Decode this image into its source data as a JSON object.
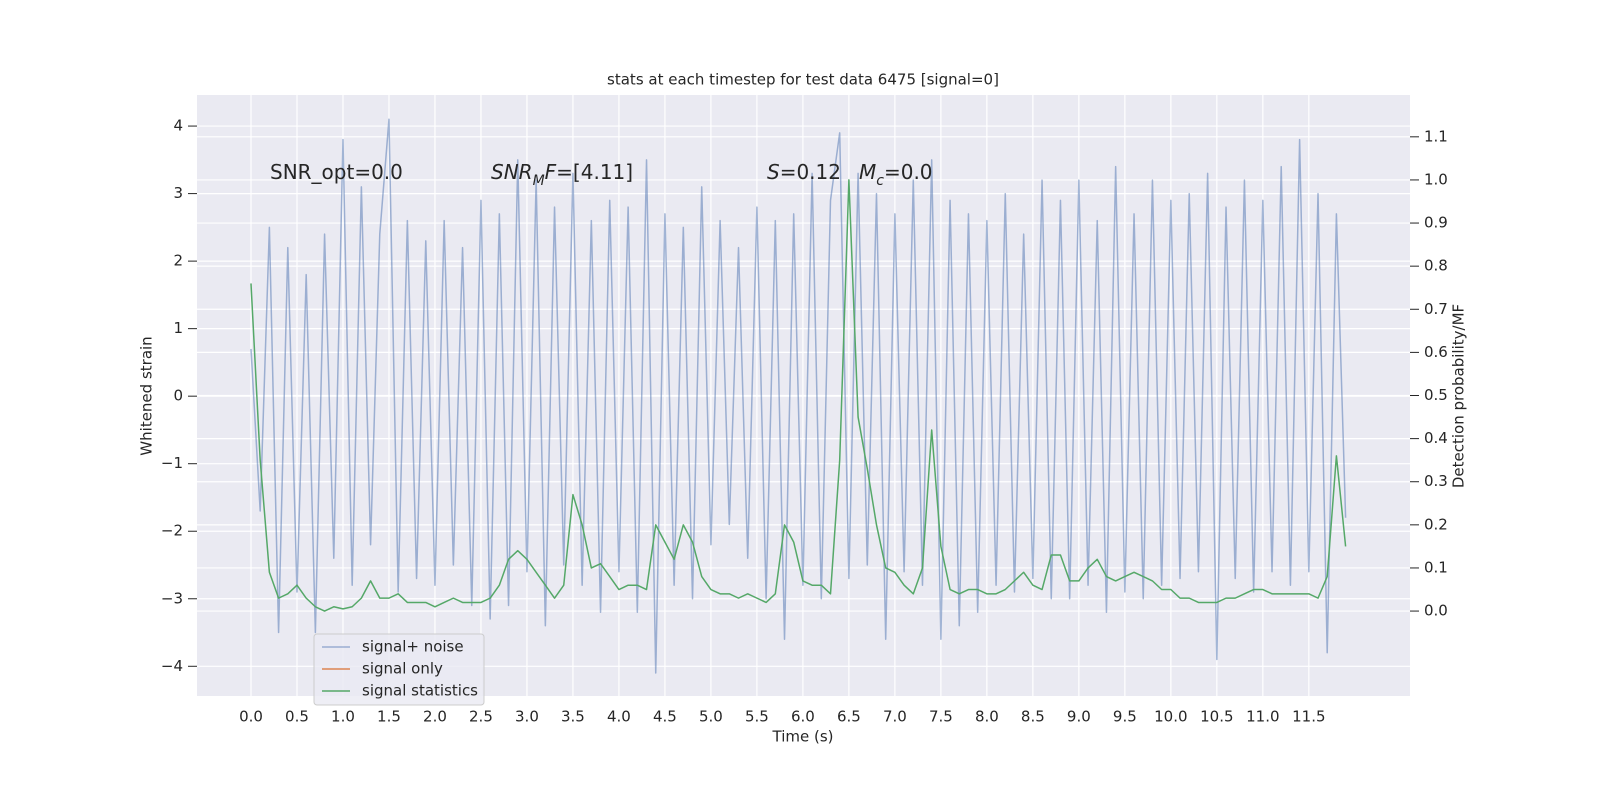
{
  "chart_data": {
    "type": "line",
    "title": "stats at each timestep for test data 6475 [signal=0]",
    "xlabel": "Time (s)",
    "ylabel": "Whitened strain",
    "y2label": "Detection probability/MF",
    "annotations": [
      {
        "segments": [
          {
            "text": "SNR_opt=0.0",
            "italic": false,
            "sub": false
          }
        ]
      },
      {
        "segments": [
          {
            "text": "SNR",
            "italic": true,
            "sub": false
          },
          {
            "text": "M",
            "italic": true,
            "sub": true
          },
          {
            "text": "F",
            "italic": true,
            "sub": false
          },
          {
            "text": "=[4.11]",
            "italic": false,
            "sub": false
          }
        ]
      },
      {
        "segments": [
          {
            "text": "S",
            "italic": true,
            "sub": false
          },
          {
            "text": "=0.12",
            "italic": false,
            "sub": false
          }
        ]
      },
      {
        "segments": [
          {
            "text": "M",
            "italic": true,
            "sub": false
          },
          {
            "text": "c",
            "italic": true,
            "sub": true
          },
          {
            "text": "=0.0",
            "italic": false,
            "sub": false
          }
        ]
      }
    ],
    "x": [
      0.0,
      0.1,
      0.2,
      0.3,
      0.4,
      0.5,
      0.6,
      0.7,
      0.8,
      0.9,
      1.0,
      1.1,
      1.2,
      1.3,
      1.4,
      1.5,
      1.6,
      1.7,
      1.8,
      1.9,
      2.0,
      2.1,
      2.2,
      2.3,
      2.4,
      2.5,
      2.6,
      2.7,
      2.8,
      2.9,
      3.0,
      3.1,
      3.2,
      3.3,
      3.4,
      3.5,
      3.6,
      3.7,
      3.8,
      3.9,
      4.0,
      4.1,
      4.2,
      4.3,
      4.4,
      4.5,
      4.6,
      4.7,
      4.8,
      4.9,
      5.0,
      5.1,
      5.2,
      5.3,
      5.4,
      5.5,
      5.6,
      5.7,
      5.8,
      5.9,
      6.0,
      6.1,
      6.2,
      6.3,
      6.4,
      6.5,
      6.6,
      6.7,
      6.8,
      6.9,
      7.0,
      7.1,
      7.2,
      7.3,
      7.4,
      7.5,
      7.6,
      7.7,
      7.8,
      7.9,
      8.0,
      8.1,
      8.2,
      8.3,
      8.4,
      8.5,
      8.6,
      8.7,
      8.8,
      8.9,
      9.0,
      9.1,
      9.2,
      9.3,
      9.4,
      9.5,
      9.6,
      9.7,
      9.8,
      9.9,
      10.0,
      10.1,
      10.2,
      10.3,
      10.4,
      10.5,
      10.6,
      10.7,
      10.8,
      10.9,
      11.0,
      11.1,
      11.2,
      11.3,
      11.4,
      11.5,
      11.6,
      11.7,
      11.8,
      11.9
    ],
    "series": [
      {
        "name": "signal+ noise",
        "color": "#4c72b0",
        "opacity": 0.5,
        "axis": "y",
        "values": [
          0.7,
          -1.7,
          2.5,
          -3.5,
          2.2,
          -2.9,
          1.8,
          -3.5,
          2.4,
          -2.4,
          3.8,
          -2.8,
          3.1,
          -2.2,
          2.4,
          4.1,
          -2.9,
          2.6,
          -2.7,
          2.3,
          -2.8,
          2.6,
          -2.5,
          2.2,
          -3.1,
          2.9,
          -3.3,
          2.7,
          -3.1,
          3.5,
          -2.6,
          3.2,
          -3.4,
          2.8,
          -2.5,
          3.3,
          -2.8,
          2.6,
          -3.2,
          2.9,
          -2.6,
          2.8,
          -3.2,
          3.5,
          -4.1,
          2.7,
          -2.8,
          2.5,
          -3.0,
          3.1,
          -2.2,
          2.6,
          -1.9,
          2.2,
          -2.4,
          2.8,
          -3.0,
          2.6,
          -3.6,
          2.7,
          -2.8,
          3.3,
          -3.0,
          2.9,
          3.9,
          -2.7,
          3.3,
          -2.5,
          3.0,
          -3.6,
          2.7,
          -2.6,
          3.2,
          -2.8,
          3.5,
          -3.6,
          2.9,
          -3.4,
          2.7,
          -3.2,
          2.6,
          -2.8,
          3.0,
          -2.9,
          2.4,
          -2.7,
          3.2,
          -3.0,
          2.9,
          -3.0,
          3.2,
          -2.8,
          2.6,
          -3.2,
          3.4,
          -2.9,
          2.7,
          -3.0,
          3.2,
          -2.8,
          2.9,
          -2.7,
          3.0,
          -2.6,
          3.3,
          -3.9,
          2.8,
          -2.7,
          3.2,
          -2.9,
          2.9,
          -2.6,
          3.4,
          -2.8,
          3.8,
          -2.6,
          3.0,
          -3.8,
          2.7,
          -1.8
        ]
      },
      {
        "name": "signal only",
        "color": "#dd8452",
        "opacity": 1,
        "axis": "y",
        "values": [
          null,
          null,
          null,
          null,
          null,
          null,
          null,
          null,
          null,
          null,
          null,
          null,
          null,
          null,
          null,
          null,
          null,
          null,
          null,
          null,
          null,
          null,
          null,
          null,
          null,
          null,
          null,
          null,
          null,
          null,
          null,
          null,
          null,
          null,
          null,
          null,
          null,
          null,
          null,
          null,
          null,
          null,
          null,
          null,
          null,
          null,
          null,
          null,
          null,
          null,
          null,
          null,
          null,
          null,
          null,
          null,
          null,
          null,
          null,
          null,
          null,
          null,
          null,
          null,
          null,
          null,
          null,
          null,
          null,
          null,
          null,
          null,
          null,
          null,
          null,
          null,
          null,
          null,
          null,
          null,
          null,
          null,
          null,
          null,
          null,
          null,
          null,
          null,
          null,
          null,
          null,
          null,
          null,
          null,
          null,
          null,
          null,
          null,
          null,
          null,
          null,
          null,
          null,
          null,
          null,
          null,
          null,
          null,
          null,
          null,
          null,
          null,
          null,
          null,
          null,
          null,
          null,
          null,
          null,
          null
        ]
      },
      {
        "name": "signal statistics",
        "color": "#55a868",
        "opacity": 1,
        "axis": "y2",
        "values": [
          0.76,
          0.35,
          0.09,
          0.03,
          0.04,
          0.06,
          0.03,
          0.01,
          0.0,
          0.01,
          0.005,
          0.01,
          0.03,
          0.07,
          0.03,
          0.03,
          0.04,
          0.02,
          0.02,
          0.02,
          0.01,
          0.02,
          0.03,
          0.02,
          0.02,
          0.02,
          0.03,
          0.06,
          0.12,
          0.14,
          0.12,
          0.09,
          0.06,
          0.03,
          0.06,
          0.27,
          0.2,
          0.1,
          0.11,
          0.08,
          0.05,
          0.06,
          0.06,
          0.05,
          0.2,
          0.16,
          0.12,
          0.2,
          0.16,
          0.08,
          0.05,
          0.04,
          0.04,
          0.03,
          0.04,
          0.03,
          0.02,
          0.04,
          0.2,
          0.16,
          0.07,
          0.06,
          0.06,
          0.04,
          0.35,
          1.0,
          0.45,
          0.33,
          0.2,
          0.1,
          0.09,
          0.06,
          0.04,
          0.1,
          0.42,
          0.15,
          0.05,
          0.04,
          0.05,
          0.05,
          0.04,
          0.04,
          0.05,
          0.07,
          0.09,
          0.06,
          0.05,
          0.13,
          0.13,
          0.07,
          0.07,
          0.1,
          0.12,
          0.08,
          0.07,
          0.08,
          0.09,
          0.08,
          0.07,
          0.05,
          0.05,
          0.03,
          0.03,
          0.02,
          0.02,
          0.02,
          0.03,
          0.03,
          0.04,
          0.05,
          0.05,
          0.04,
          0.04,
          0.04,
          0.04,
          0.04,
          0.03,
          0.08,
          0.36,
          0.15
        ]
      }
    ],
    "xlim": [
      -0.587,
      12.6
    ],
    "ylim": [
      -4.44,
      4.46
    ],
    "y2lim": [
      -0.197,
      1.197
    ],
    "xticks": [
      {
        "value": 0,
        "label": "0.0"
      },
      0.5,
      {
        "value": 1,
        "label": "1.0"
      },
      1.5,
      {
        "value": 2,
        "label": "2.0"
      },
      2.5,
      {
        "value": 3,
        "label": "3.0"
      },
      3.5,
      {
        "value": 4,
        "label": "4.0"
      },
      4.5,
      {
        "value": 5,
        "label": "5.0"
      },
      5.5,
      {
        "value": 6,
        "label": "6.0"
      },
      6.5,
      {
        "value": 7,
        "label": "7.0"
      },
      7.5,
      {
        "value": 8,
        "label": "8.0"
      },
      8.5,
      {
        "value": 9,
        "label": "9.0"
      },
      9.5,
      {
        "value": 10,
        "label": "10.0"
      },
      10.5,
      {
        "value": 11,
        "label": "11.0"
      },
      11.5
    ],
    "yticks": [
      {
        "value": -4,
        "label": "−4"
      },
      {
        "value": -3,
        "label": "−3"
      },
      {
        "value": -2,
        "label": "−2"
      },
      {
        "value": -1,
        "label": "−1"
      },
      0,
      1,
      2,
      3,
      4
    ],
    "y2ticks": [
      {
        "value": 0,
        "label": "0.0"
      },
      0.1,
      0.2,
      0.3,
      0.4,
      0.5,
      0.6,
      0.7,
      0.8,
      0.9,
      {
        "value": 1,
        "label": "1.0"
      },
      1.1
    ],
    "grid": true,
    "legend": "lower left",
    "background": "#eaeaf2"
  }
}
